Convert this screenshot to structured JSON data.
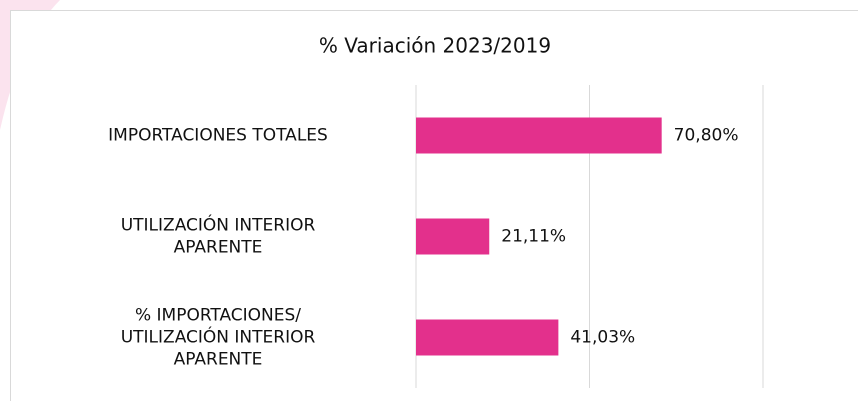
{
  "chart_data": {
    "type": "hbar",
    "title": "% Variación 2023/2019",
    "categories": [
      [
        "IMPORTACIONES TOTALES"
      ],
      [
        "UTILIZACIÓN INTERIOR",
        "APARENTE"
      ],
      [
        "% IMPORTACIONES/",
        "UTILIZACIÓN INTERIOR",
        "APARENTE"
      ]
    ],
    "values": [
      70.8,
      21.11,
      41.03
    ],
    "value_labels": [
      "70,80%",
      "21,11%",
      "41,03%"
    ],
    "color": "#e3308c",
    "xlim": [
      0,
      100
    ],
    "xticks": [
      0,
      50,
      100
    ],
    "grid": true
  }
}
